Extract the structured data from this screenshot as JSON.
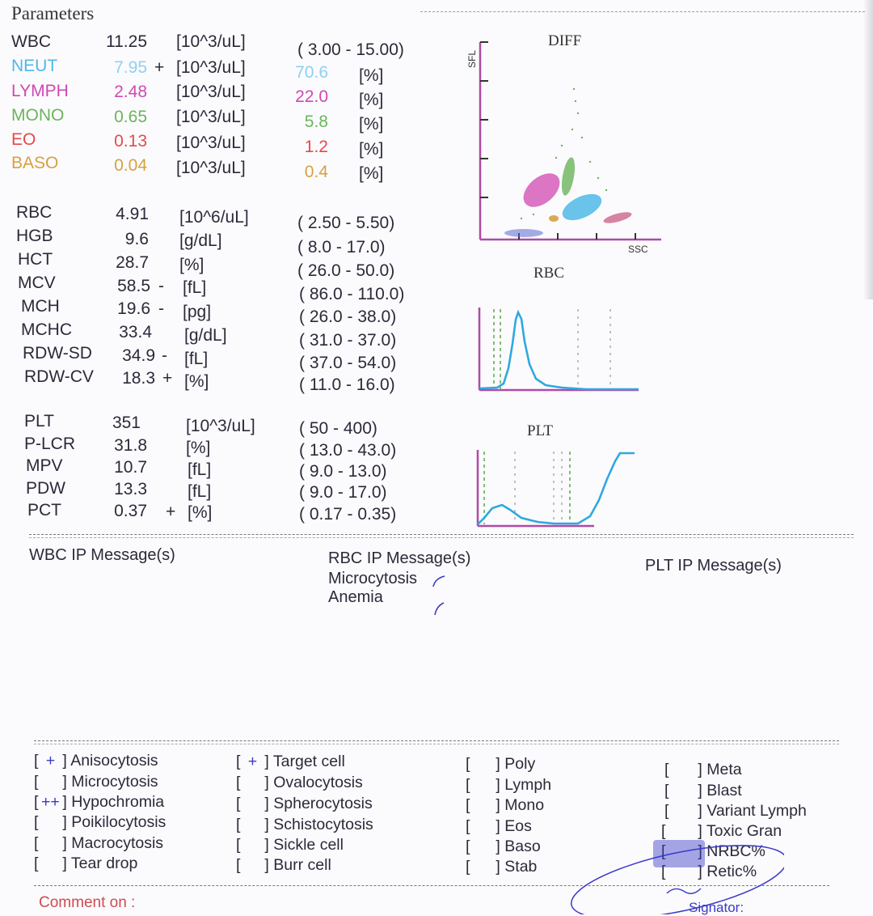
{
  "header": {
    "title": "Parameters"
  },
  "colors": {
    "neut": "#4fb8e8",
    "lymph": "#d048b0",
    "mono": "#6cb45c",
    "eo": "#e84848",
    "baso": "#d8a040",
    "axis": "#b04aa4",
    "curve": "#2ea8e0",
    "ink": "#3a3ac8"
  },
  "wbc": [
    {
      "name": "WBC",
      "value": "11.25",
      "flag": "",
      "unit": "[10^3/uL]",
      "range": "( 3.00 -  15.00)"
    },
    {
      "name": "NEUT",
      "value": "7.95",
      "flag": "+",
      "unit": "[10^3/uL]",
      "pct": "70.6",
      "pct_unit": "[%]"
    },
    {
      "name": "LYMPH",
      "value": "2.48",
      "flag": "",
      "unit": "[10^3/uL]",
      "pct": "22.0",
      "pct_unit": "[%]"
    },
    {
      "name": "MONO",
      "value": "0.65",
      "flag": "",
      "unit": "[10^3/uL]",
      "pct": "5.8",
      "pct_unit": "[%]"
    },
    {
      "name": "EO",
      "value": "0.13",
      "flag": "",
      "unit": "[10^3/uL]",
      "pct": "1.2",
      "pct_unit": "[%]"
    },
    {
      "name": "BASO",
      "value": "0.04",
      "flag": "",
      "unit": "[10^3/uL]",
      "pct": "0.4",
      "pct_unit": "[%]"
    }
  ],
  "rbc": [
    {
      "name": "RBC",
      "value": "4.91",
      "flag": "",
      "unit": "[10^6/uL]",
      "range": "( 2.50 -  5.50)"
    },
    {
      "name": "HGB",
      "value": "9.6",
      "flag": "",
      "unit": "[g/dL]",
      "range": "(  8.0 -  17.0)"
    },
    {
      "name": "HCT",
      "value": "28.7",
      "flag": "",
      "unit": "[%]",
      "range": "( 26.0 -  50.0)"
    },
    {
      "name": "MCV",
      "value": "58.5",
      "flag": "-",
      "unit": "[fL]",
      "range": "( 86.0 -  110.0)"
    },
    {
      "name": "MCH",
      "value": "19.6",
      "flag": "-",
      "unit": "[pg]",
      "range": "( 26.0 -  38.0)"
    },
    {
      "name": "MCHC",
      "value": "33.4",
      "flag": "",
      "unit": "[g/dL]",
      "range": "( 31.0 -  37.0)"
    },
    {
      "name": "RDW-SD",
      "value": "34.9",
      "flag": "-",
      "unit": "[fL]",
      "range": "( 37.0 -  54.0)"
    },
    {
      "name": "RDW-CV",
      "value": "18.3",
      "flag": "+",
      "unit": "[%]",
      "range": "( 11.0 -  16.0)"
    }
  ],
  "plt": [
    {
      "name": "PLT",
      "value": "351",
      "flag": "",
      "unit": "[10^3/uL]",
      "range": "(   50 -   400)"
    },
    {
      "name": "P-LCR",
      "value": "31.8",
      "flag": "",
      "unit": "[%]",
      "range": "( 13.0 -  43.0)"
    },
    {
      "name": "MPV",
      "value": "10.7",
      "flag": "",
      "unit": "[fL]",
      "range": "(  9.0 -  13.0)"
    },
    {
      "name": "PDW",
      "value": "13.3",
      "flag": "",
      "unit": "[fL]",
      "range": "(  9.0 -  17.0)"
    },
    {
      "name": "PCT",
      "value": "0.37",
      "flag": "+",
      "unit": "[%]",
      "range": "( 0.17 -  0.35)"
    }
  ],
  "charts": {
    "diff_title": "DIFF",
    "diff_y": "SFL",
    "diff_x": "SSC",
    "rbc_title": "RBC",
    "plt_title": "PLT"
  },
  "messages": {
    "wbc_title": "WBC IP Message(s)",
    "rbc_title": "RBC IP Message(s)",
    "rbc_items": [
      "Microcytosis",
      "Anemia"
    ],
    "plt_title": "PLT IP Message(s)"
  },
  "checklist": {
    "col1": [
      {
        "mark": "+",
        "label": "Anisocytosis"
      },
      {
        "mark": "",
        "label": "Microcytosis"
      },
      {
        "mark": "++",
        "label": "Hypochromia"
      },
      {
        "mark": "",
        "label": "Poikilocytosis"
      },
      {
        "mark": "",
        "label": "Macrocytosis"
      },
      {
        "mark": "",
        "label": "Tear drop"
      }
    ],
    "col2": [
      {
        "mark": "+",
        "label": "Target cell"
      },
      {
        "mark": "",
        "label": "Ovalocytosis"
      },
      {
        "mark": "",
        "label": "Spherocytosis"
      },
      {
        "mark": "",
        "label": "Schistocytosis"
      },
      {
        "mark": "",
        "label": "Sickle cell"
      },
      {
        "mark": "",
        "label": "Burr cell"
      }
    ],
    "col3": [
      {
        "mark": "",
        "label": "Poly"
      },
      {
        "mark": "",
        "label": "Lymph"
      },
      {
        "mark": "",
        "label": "Mono"
      },
      {
        "mark": "",
        "label": "Eos"
      },
      {
        "mark": "",
        "label": "Baso"
      },
      {
        "mark": "",
        "label": "Stab"
      }
    ],
    "col4": [
      {
        "mark": "",
        "label": "Meta"
      },
      {
        "mark": "",
        "label": "Blast"
      },
      {
        "mark": "",
        "label": "Variant Lymph"
      },
      {
        "mark": "",
        "label": "Toxic Gran"
      },
      {
        "mark": "",
        "label": "NRBC%"
      },
      {
        "mark": "",
        "label": "Retic%"
      }
    ]
  },
  "footer": {
    "comment": "Comment on :",
    "signature": "Signator:"
  }
}
